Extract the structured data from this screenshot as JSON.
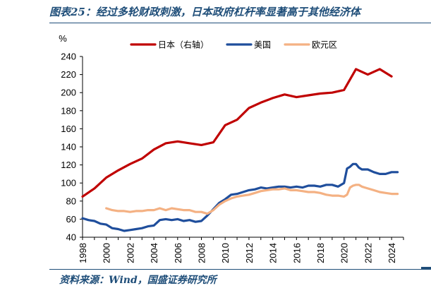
{
  "header": {
    "title": "图表25：经过多轮财政刺激，日本政府杠杆率显著高于其他经济体"
  },
  "footer": {
    "source": "资料来源：Wind，国盛证券研究所"
  },
  "chart_data": {
    "type": "line",
    "ylabel": "%",
    "ylim": [
      40,
      240
    ],
    "yticks": [
      40,
      60,
      80,
      100,
      120,
      140,
      160,
      180,
      200,
      220,
      240
    ],
    "xlim": [
      1998,
      2025
    ],
    "xticks": [
      1998,
      2000,
      2002,
      2004,
      2006,
      2008,
      2010,
      2012,
      2014,
      2016,
      2018,
      2020,
      2022,
      2024
    ],
    "grid": false,
    "legend": "top",
    "series": [
      {
        "name": "日本（右轴）",
        "color": "#c00000",
        "x": [
          1998,
          1999,
          2000,
          2001,
          2002,
          2003,
          2004,
          2005,
          2006,
          2007,
          2008,
          2009,
          2010,
          2011,
          2012,
          2013,
          2014,
          2015,
          2016,
          2017,
          2018,
          2019,
          2020,
          2021,
          2022,
          2023,
          2024
        ],
        "y": [
          85,
          94,
          106,
          114,
          121,
          127,
          137,
          144,
          146,
          144,
          142,
          145,
          164,
          170,
          183,
          189,
          194,
          198,
          195,
          197,
          199,
          200,
          203,
          226,
          220,
          226,
          218
        ]
      },
      {
        "name": "美国",
        "color": "#1f4e9c",
        "x": [
          1998,
          1998.5,
          1999,
          1999.5,
          2000,
          2000.5,
          2001,
          2001.5,
          2002,
          2002.5,
          2003,
          2003.5,
          2004,
          2004.5,
          2005,
          2005.5,
          2006,
          2006.5,
          2007,
          2007.5,
          2008,
          2008.5,
          2009,
          2009.5,
          2010,
          2010.5,
          2011,
          2011.5,
          2012,
          2012.5,
          2013,
          2013.5,
          2014,
          2014.5,
          2015,
          2015.5,
          2016,
          2016.5,
          2017,
          2017.5,
          2018,
          2018.5,
          2019,
          2019.5,
          2020,
          2020.25,
          2020.5,
          2020.75,
          2021,
          2021.25,
          2021.5,
          2021.75,
          2022,
          2022.5,
          2023,
          2023.5,
          2024,
          2024.25,
          2024.5
        ],
        "y": [
          61,
          59,
          58,
          55,
          54,
          50,
          49,
          47,
          48,
          49,
          50,
          52,
          53,
          59,
          60,
          59,
          60,
          58,
          59,
          57,
          58,
          64,
          71,
          78,
          82,
          87,
          88,
          90,
          92,
          93,
          95,
          94,
          95,
          96,
          96,
          95,
          96,
          95,
          97,
          97,
          96,
          98,
          98,
          96,
          100,
          116,
          118,
          121,
          121,
          117,
          115,
          115,
          115,
          112,
          110,
          110,
          112,
          112,
          112
        ]
      },
      {
        "name": "欧元区",
        "color": "#f4b183",
        "x": [
          2000,
          2000.5,
          2001,
          2001.5,
          2002,
          2002.5,
          2003,
          2003.5,
          2004,
          2004.5,
          2005,
          2005.5,
          2006,
          2006.5,
          2007,
          2007.5,
          2008,
          2008.5,
          2009,
          2009.5,
          2010,
          2010.5,
          2011,
          2011.5,
          2012,
          2012.5,
          2013,
          2013.5,
          2014,
          2014.5,
          2015,
          2015.5,
          2016,
          2016.5,
          2017,
          2017.5,
          2018,
          2018.5,
          2019,
          2019.5,
          2020,
          2020.25,
          2020.5,
          2020.75,
          2021,
          2021.25,
          2021.5,
          2021.75,
          2022,
          2022.5,
          2023,
          2023.5,
          2024,
          2024.5
        ],
        "y": [
          72,
          70,
          69,
          69,
          68,
          69,
          69,
          70,
          70,
          72,
          70,
          72,
          71,
          70,
          70,
          68,
          68,
          66,
          70,
          76,
          80,
          83,
          85,
          86,
          87,
          89,
          91,
          92,
          93,
          93,
          94,
          92,
          92,
          91,
          90,
          90,
          89,
          87,
          86,
          86,
          85,
          87,
          95,
          97,
          98,
          98,
          96,
          95,
          94,
          92,
          90,
          89,
          88,
          88
        ]
      }
    ]
  }
}
